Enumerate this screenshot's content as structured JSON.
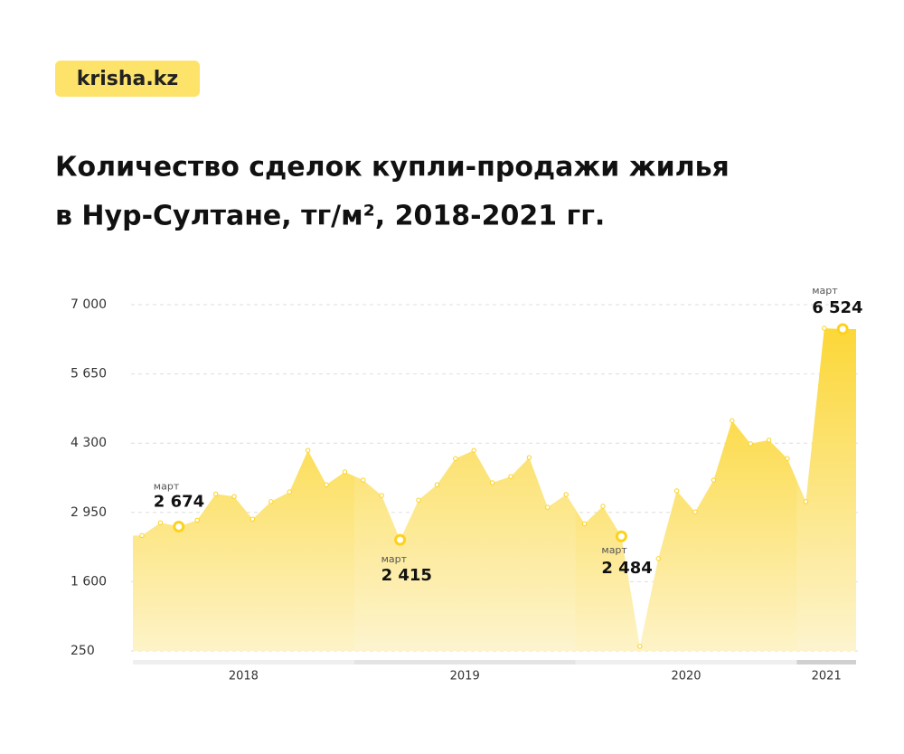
{
  "logo": "krisha.kz",
  "chart_data": {
    "type": "area",
    "title_lines": [
      "Количество сделок купли-продажи жилья",
      "в Нур-Султане, тг/м², 2018-2021 гг."
    ],
    "categories": [
      null,
      null,
      null,
      null,
      null,
      null,
      null,
      null,
      null,
      null,
      null,
      null,
      null,
      null,
      null,
      null,
      null,
      null,
      null,
      null,
      null,
      null,
      null,
      null,
      null,
      null,
      null,
      null,
      null,
      null,
      null,
      null,
      null,
      null,
      null,
      null,
      null,
      null,
      null
    ],
    "year_bands": [
      "2018",
      "2019",
      "2020",
      "2021"
    ],
    "values": [
      2500,
      2750,
      2674,
      2800,
      3310,
      3260,
      2820,
      3160,
      3350,
      4160,
      3490,
      3740,
      3580,
      3280,
      2415,
      3190,
      3490,
      4000,
      4160,
      3530,
      3650,
      4020,
      3050,
      3300,
      2730,
      3070,
      2484,
      340,
      2050,
      3370,
      2960,
      3580,
      4740,
      4290,
      4360,
      4000,
      3160,
      6540,
      6524
    ],
    "value_labels": [
      null,
      null,
      "2 674",
      null,
      null,
      null,
      null,
      null,
      null,
      null,
      null,
      null,
      null,
      null,
      "2 415",
      null,
      null,
      null,
      null,
      null,
      null,
      null,
      null,
      null,
      null,
      null,
      "2 484",
      null,
      null,
      null,
      null,
      null,
      null,
      null,
      null,
      null,
      null,
      null,
      "6 524"
    ],
    "annotation_labels": [
      null,
      null,
      "март",
      null,
      null,
      null,
      null,
      null,
      null,
      null,
      null,
      null,
      null,
      null,
      "март",
      null,
      null,
      null,
      null,
      null,
      null,
      null,
      null,
      null,
      null,
      null,
      "март",
      null,
      null,
      null,
      null,
      null,
      null,
      null,
      null,
      null,
      null,
      null,
      "март"
    ],
    "color": "#fcd21c",
    "ylim": [
      250,
      7000
    ],
    "yticks": [
      {
        "value": 250,
        "label": "250"
      },
      {
        "value": 1600,
        "label": "1 600"
      },
      {
        "value": 2950,
        "label": "2 950"
      },
      {
        "value": 4300,
        "label": "4 300"
      },
      {
        "value": 5650,
        "label": "5 650"
      },
      {
        "value": 7000,
        "label": "7 000"
      }
    ],
    "grid": true
  }
}
